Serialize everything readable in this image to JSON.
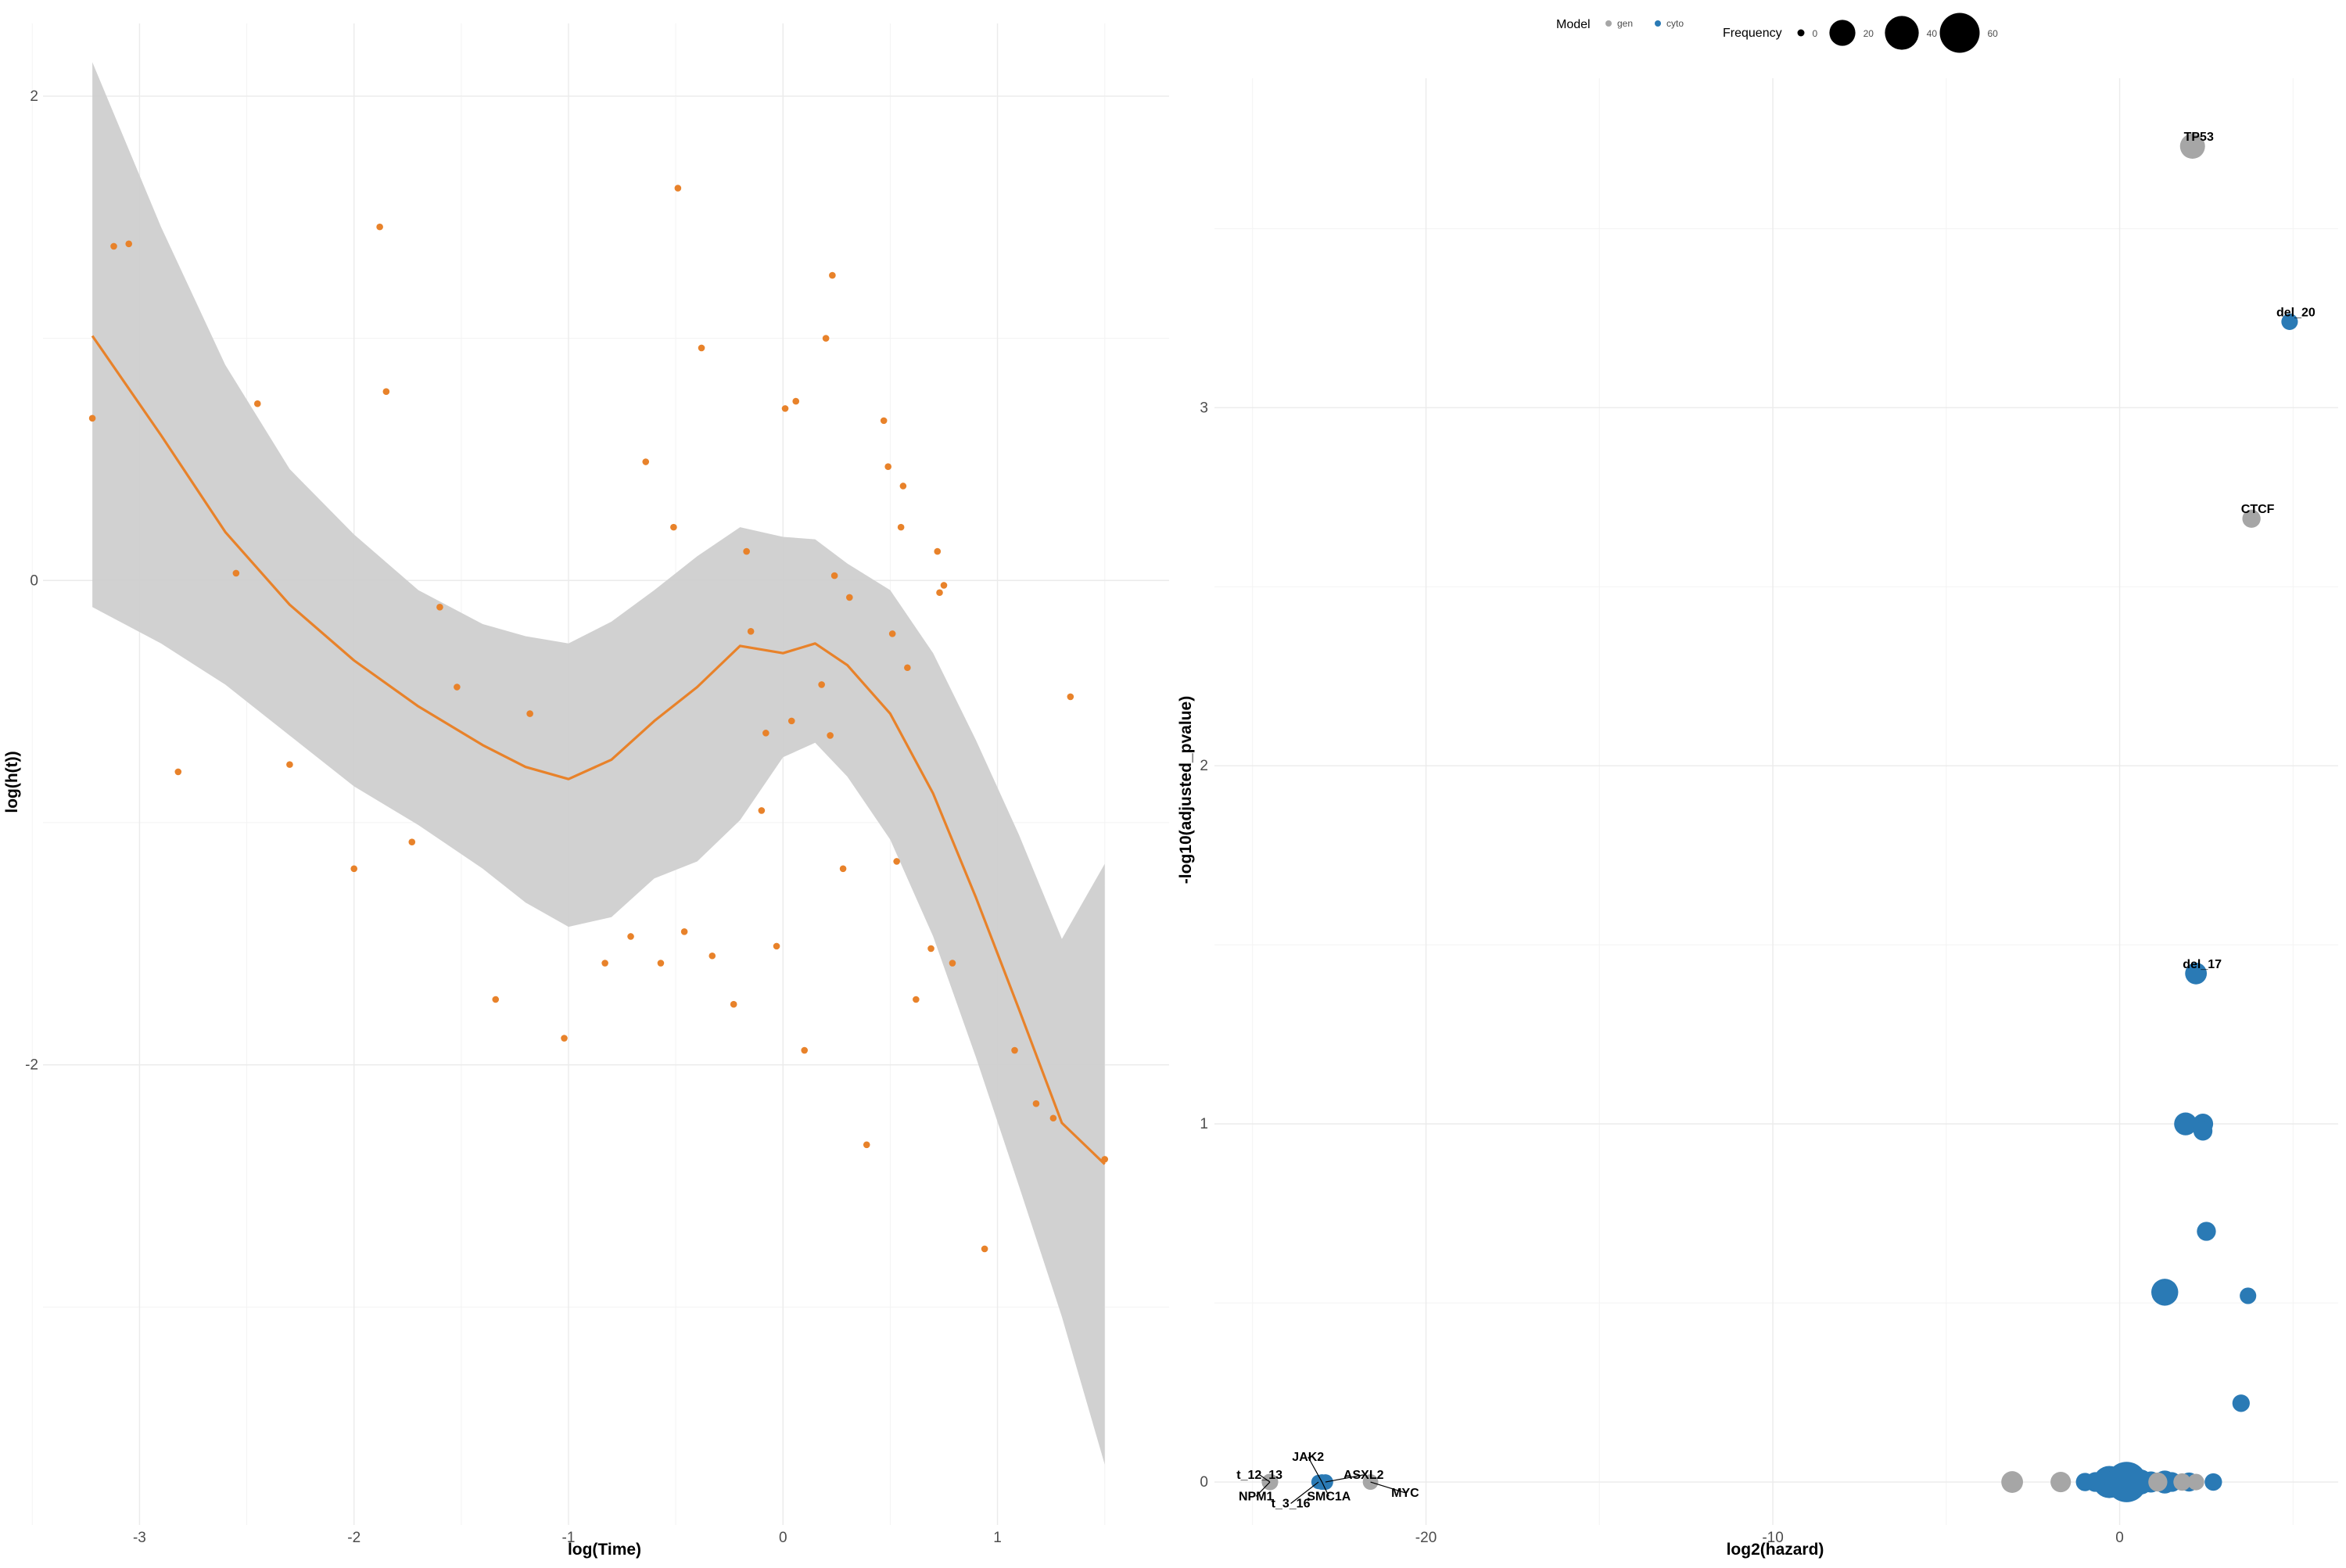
{
  "chart_data": [
    {
      "type": "scatter",
      "xlabel": "log(Time)",
      "ylabel": "log(h(t))",
      "xlim": [
        -3.45,
        1.8
      ],
      "ylim": [
        -3.9,
        2.3
      ],
      "x_ticks": [
        -3,
        -2,
        -1,
        0,
        1
      ],
      "x_tick_labels": [
        "-3",
        "-2",
        "-1",
        "0",
        "1"
      ],
      "y_ticks": [
        -2,
        0,
        2
      ],
      "y_tick_labels": [
        "-2",
        "0",
        "2"
      ],
      "grid": true,
      "colors": {
        "points": "#E8822A",
        "smooth": "#E8822A",
        "band": "#cfcfcf"
      },
      "points": [
        [
          -3.22,
          0.67
        ],
        [
          -3.12,
          1.38
        ],
        [
          -3.05,
          1.39
        ],
        [
          -2.82,
          -0.79
        ],
        [
          -2.55,
          0.03
        ],
        [
          -2.45,
          0.73
        ],
        [
          -2.3,
          -0.76
        ],
        [
          -2.0,
          -1.19
        ],
        [
          -1.88,
          1.46
        ],
        [
          -1.85,
          0.78
        ],
        [
          -1.73,
          -1.08
        ],
        [
          -1.6,
          -0.11
        ],
        [
          -1.52,
          -0.44
        ],
        [
          -1.34,
          -1.73
        ],
        [
          -1.18,
          -0.55
        ],
        [
          -1.02,
          -1.89
        ],
        [
          -0.83,
          -1.58
        ],
        [
          -0.71,
          -1.47
        ],
        [
          -0.57,
          -1.58
        ],
        [
          -0.64,
          0.49
        ],
        [
          -0.51,
          0.22
        ],
        [
          -0.49,
          1.62
        ],
        [
          -0.46,
          -1.45
        ],
        [
          -0.38,
          0.96
        ],
        [
          -0.33,
          -1.55
        ],
        [
          -0.23,
          -1.75
        ],
        [
          -0.17,
          0.12
        ],
        [
          -0.15,
          -0.21
        ],
        [
          -0.1,
          -0.95
        ],
        [
          -0.08,
          -0.63
        ],
        [
          -0.03,
          -1.51
        ],
        [
          0.01,
          0.71
        ],
        [
          0.04,
          -0.58
        ],
        [
          0.06,
          0.74
        ],
        [
          0.1,
          -1.94
        ],
        [
          0.18,
          -0.43
        ],
        [
          0.2,
          1.0
        ],
        [
          0.22,
          -0.64
        ],
        [
          0.23,
          1.26
        ],
        [
          0.24,
          0.02
        ],
        [
          0.28,
          -1.19
        ],
        [
          0.31,
          -0.07
        ],
        [
          0.39,
          -2.33
        ],
        [
          0.47,
          0.66
        ],
        [
          0.49,
          0.47
        ],
        [
          0.51,
          -0.22
        ],
        [
          0.53,
          -1.16
        ],
        [
          0.55,
          0.22
        ],
        [
          0.56,
          0.39
        ],
        [
          0.58,
          -0.36
        ],
        [
          0.62,
          -1.73
        ],
        [
          0.69,
          -1.52
        ],
        [
          0.72,
          0.12
        ],
        [
          0.73,
          -0.05
        ],
        [
          0.75,
          -0.02
        ],
        [
          0.79,
          -1.58
        ],
        [
          0.94,
          -2.76
        ],
        [
          1.08,
          -1.94
        ],
        [
          1.18,
          -2.16
        ],
        [
          1.26,
          -2.22
        ],
        [
          1.34,
          -0.48
        ],
        [
          1.5,
          -2.39
        ]
      ],
      "smooth": {
        "x": [
          -3.22,
          -2.9,
          -2.6,
          -2.3,
          -2.0,
          -1.7,
          -1.4,
          -1.2,
          -1.0,
          -0.8,
          -0.6,
          -0.4,
          -0.2,
          0.0,
          0.15,
          0.3,
          0.5,
          0.7,
          0.9,
          1.1,
          1.3,
          1.5
        ],
        "y": [
          1.01,
          0.6,
          0.2,
          -0.1,
          -0.33,
          -0.52,
          -0.68,
          -0.77,
          -0.82,
          -0.74,
          -0.58,
          -0.44,
          -0.27,
          -0.3,
          -0.26,
          -0.35,
          -0.55,
          -0.88,
          -1.31,
          -1.77,
          -2.24,
          -2.41
        ],
        "lower": [
          -0.11,
          -0.26,
          -0.43,
          -0.64,
          -0.85,
          -1.01,
          -1.19,
          -1.33,
          -1.43,
          -1.39,
          -1.23,
          -1.16,
          -0.99,
          -0.73,
          -0.67,
          -0.81,
          -1.07,
          -1.47,
          -1.97,
          -2.5,
          -3.04,
          -3.65
        ],
        "upper": [
          2.14,
          1.46,
          0.89,
          0.46,
          0.19,
          -0.04,
          -0.18,
          -0.23,
          -0.26,
          -0.17,
          -0.04,
          0.1,
          0.22,
          0.18,
          0.17,
          0.07,
          -0.04,
          -0.3,
          -0.66,
          -1.05,
          -1.48,
          -1.17
        ]
      }
    },
    {
      "type": "scatter",
      "xlabel": "log2(hazard)",
      "ylabel": "-log10(adjusted_pvalue)",
      "xlim": [
        -26.1,
        6.3
      ],
      "ylim": [
        -0.12,
        3.92
      ],
      "x_ticks": [
        -20,
        -10,
        0
      ],
      "x_tick_labels": [
        "-20",
        "-10",
        "0"
      ],
      "y_ticks": [
        0,
        1,
        2,
        3
      ],
      "y_tick_labels": [
        "0",
        "1",
        "2",
        "3"
      ],
      "grid": true,
      "legend": {
        "position": "top",
        "model_title": "Model",
        "model_entries": [
          {
            "label": "gen",
            "color": "#a6a6a6"
          },
          {
            "label": "cyto",
            "color": "#2a7ab5"
          }
        ],
        "size_title": "Frequency",
        "size_entries": [
          {
            "label": "0",
            "value": 0
          },
          {
            "label": "20",
            "value": 20
          },
          {
            "label": "40",
            "value": 40
          },
          {
            "label": "60",
            "value": 60
          }
        ]
      },
      "colors": {
        "gen": "#a6a6a6",
        "cyto": "#2a7ab5"
      },
      "points": [
        {
          "x": 2.1,
          "y": 3.73,
          "model": "gen",
          "freq": 18,
          "label": "TP53"
        },
        {
          "x": 4.9,
          "y": 3.24,
          "model": "cyto",
          "freq": 5,
          "label": "del_20"
        },
        {
          "x": 3.8,
          "y": 2.69,
          "model": "gen",
          "freq": 7,
          "label": "CTCF"
        },
        {
          "x": 2.2,
          "y": 1.42,
          "model": "cyto",
          "freq": 12,
          "label": "del_17"
        },
        {
          "x": 1.9,
          "y": 1.0,
          "model": "cyto",
          "freq": 14
        },
        {
          "x": 2.4,
          "y": 1.0,
          "model": "cyto",
          "freq": 10
        },
        {
          "x": 2.4,
          "y": 0.98,
          "model": "cyto",
          "freq": 8
        },
        {
          "x": 2.5,
          "y": 0.7,
          "model": "cyto",
          "freq": 8
        },
        {
          "x": 1.3,
          "y": 0.53,
          "model": "cyto",
          "freq": 22
        },
        {
          "x": 3.7,
          "y": 0.52,
          "model": "cyto",
          "freq": 5
        },
        {
          "x": 3.5,
          "y": 0.22,
          "model": "cyto",
          "freq": 6
        },
        {
          "x": -3.1,
          "y": 0.0,
          "model": "gen",
          "freq": 12
        },
        {
          "x": -1.7,
          "y": 0.0,
          "model": "gen",
          "freq": 10
        },
        {
          "x": -1.0,
          "y": 0.0,
          "model": "cyto",
          "freq": 7
        },
        {
          "x": -0.7,
          "y": 0.0,
          "model": "cyto",
          "freq": 9
        },
        {
          "x": -0.4,
          "y": 0.0,
          "model": "cyto",
          "freq": 13
        },
        {
          "x": -0.3,
          "y": 0.0,
          "model": "cyto",
          "freq": 35
        },
        {
          "x": 0.2,
          "y": 0.0,
          "model": "cyto",
          "freq": 62
        },
        {
          "x": 0.6,
          "y": 0.0,
          "model": "cyto",
          "freq": 18
        },
        {
          "x": 0.9,
          "y": 0.0,
          "model": "cyto",
          "freq": 11
        },
        {
          "x": 1.1,
          "y": 0.0,
          "model": "gen",
          "freq": 8
        },
        {
          "x": 1.3,
          "y": 0.0,
          "model": "cyto",
          "freq": 14
        },
        {
          "x": 1.5,
          "y": 0.0,
          "model": "cyto",
          "freq": 9
        },
        {
          "x": 1.8,
          "y": 0.0,
          "model": "gen",
          "freq": 6
        },
        {
          "x": 2.0,
          "y": 0.0,
          "model": "cyto",
          "freq": 8
        },
        {
          "x": 2.2,
          "y": 0.0,
          "model": "gen",
          "freq": 5
        },
        {
          "x": 2.7,
          "y": 0.0,
          "model": "cyto",
          "freq": 6
        },
        {
          "x": -24.5,
          "y": 0.0,
          "model": "gen",
          "freq": 5
        },
        {
          "x": -23.0,
          "y": 0.0,
          "model": "cyto",
          "freq": 4
        },
        {
          "x": -22.9,
          "y": 0.0,
          "model": "cyto",
          "freq": 4
        },
        {
          "x": -23.1,
          "y": 0.0,
          "model": "cyto",
          "freq": 3
        },
        {
          "x": -21.6,
          "y": 0.0,
          "model": "gen",
          "freq": 4
        }
      ],
      "labels": [
        {
          "text": "t_12_13",
          "x": -24.8,
          "y": 0.02,
          "px": -24.5,
          "py": 0.0
        },
        {
          "text": "JAK2",
          "x": -23.4,
          "y": 0.07,
          "px": -23.0,
          "py": 0.0
        },
        {
          "text": "ASXL2",
          "x": -21.8,
          "y": 0.02,
          "px": -22.9,
          "py": 0.0
        },
        {
          "text": "MYC",
          "x": -20.6,
          "y": -0.03,
          "px": -21.6,
          "py": 0.0
        },
        {
          "text": "NPM1",
          "x": -24.9,
          "y": -0.04,
          "px": -24.5,
          "py": 0.0
        },
        {
          "text": "t_3_16",
          "x": -23.9,
          "y": -0.06,
          "px": -23.1,
          "py": 0.0
        },
        {
          "text": "SMC1A",
          "x": -22.8,
          "y": -0.04,
          "px": -23.0,
          "py": 0.0
        }
      ]
    }
  ]
}
